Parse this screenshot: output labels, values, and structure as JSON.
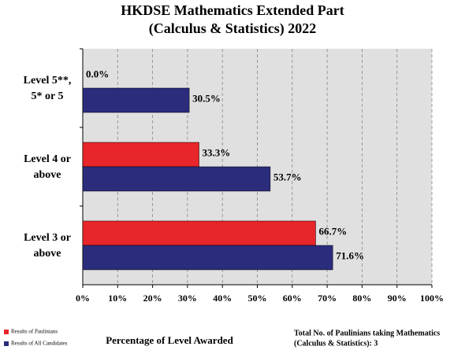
{
  "chart_data": {
    "type": "barh",
    "title": [
      "HKDSE Mathematics Extended Part",
      "(Calculus & Statistics) 2022"
    ],
    "categories": [
      [
        "Level 5**,",
        "5* or 5"
      ],
      [
        "Level 4 or",
        "above"
      ],
      [
        "Level 3 or",
        "above"
      ]
    ],
    "series": [
      {
        "name": "Results of Paulinians",
        "color": "#e8252a",
        "values": [
          0.0,
          33.3,
          66.7
        ],
        "value_labels": [
          "0.0%",
          "33.3%",
          "66.7%"
        ]
      },
      {
        "name": "Results of All Candidates",
        "color": "#2b2c7c",
        "values": [
          30.5,
          53.7,
          71.6
        ],
        "value_labels": [
          "30.5%",
          "53.7%",
          "71.6%"
        ]
      }
    ],
    "xlim": [
      0,
      100
    ],
    "xticks": [
      {
        "value": 0,
        "label": "0%"
      },
      {
        "value": 10,
        "label": "10%"
      },
      {
        "value": 20,
        "label": "20%"
      },
      {
        "value": 30,
        "label": "30%"
      },
      {
        "value": 40,
        "label": "40%"
      },
      {
        "value": 50,
        "label": "50%"
      },
      {
        "value": 60,
        "label": "60%"
      },
      {
        "value": 70,
        "label": "70%"
      },
      {
        "value": 80,
        "label": "80%"
      },
      {
        "value": 90,
        "label": "90%"
      },
      {
        "value": 100,
        "label": "100%"
      }
    ],
    "xlabel": "Percentage of Level Awarded",
    "annotation": [
      "Total No. of Paulinians taking Mathematics",
      "(Calculus & Statistics): 3"
    ],
    "grid": true,
    "legend": "lower left"
  }
}
